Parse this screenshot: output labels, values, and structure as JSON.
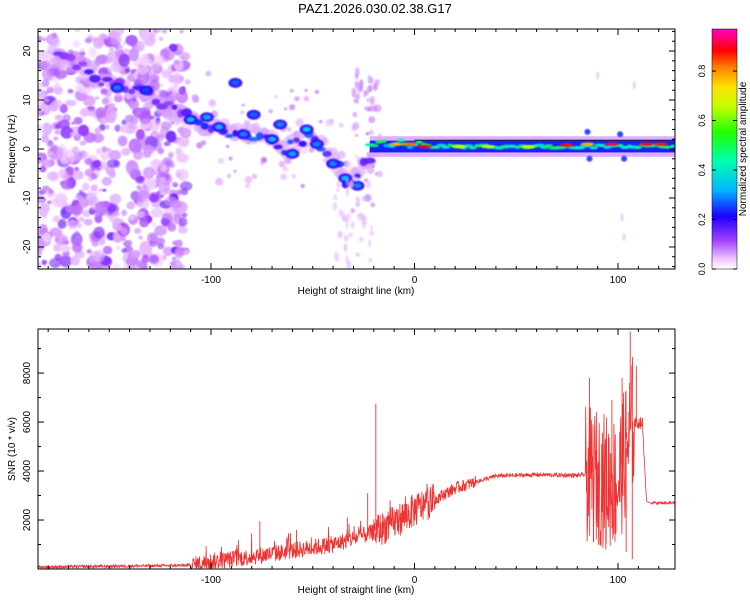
{
  "title": "PAZ1.2026.030.02.38.G17",
  "chart_data": [
    {
      "type": "heatmap",
      "name": "spectrogram",
      "xlabel": "Height of straight line (km)",
      "ylabel": "Frequency (Hz)",
      "xlim": [
        -185,
        128
      ],
      "ylim": [
        -24.5,
        24.5
      ],
      "xticks": [
        -100,
        0,
        100
      ],
      "yticks": [
        -20,
        -10,
        0,
        10,
        20
      ],
      "colorbar": {
        "label": "Normalized spectral amplitude",
        "range": [
          0,
          0.97
        ],
        "ticks": [
          0.0,
          0.2,
          0.4,
          0.6,
          0.8
        ],
        "colormap": "rainbow (white, violet, blue, cyan, green, yellow, orange, red, magenta)"
      },
      "ridge": {
        "description": "dominant frequency track",
        "points": [
          [
            -185,
            20
          ],
          [
            -165,
            17
          ],
          [
            -150,
            13
          ],
          [
            -135,
            12
          ],
          [
            -120,
            8
          ],
          [
            -110,
            6
          ],
          [
            -95,
            4
          ],
          [
            -85,
            3
          ],
          [
            -75,
            3
          ],
          [
            -65,
            0
          ],
          [
            -50,
            3
          ],
          [
            -40,
            -2
          ],
          [
            -33,
            -7
          ],
          [
            -25,
            -3
          ],
          [
            -18,
            0
          ],
          [
            -5,
            1
          ],
          [
            0,
            0.5
          ],
          [
            20,
            0
          ],
          [
            60,
            0
          ],
          [
            90,
            1
          ],
          [
            128,
            1
          ]
        ]
      },
      "regions": [
        {
          "x_range": [
            -185,
            -112
          ],
          "description": "scattered noise speckle across all frequencies",
          "amplitude": 0.1
        },
        {
          "x_range": [
            -112,
            -25
          ],
          "description": "descending blobs",
          "amplitude": 0.25
        },
        {
          "x_range": [
            -22,
            128
          ],
          "description": "stable carrier near 0 Hz",
          "amplitude": 0.45
        }
      ]
    },
    {
      "type": "line",
      "name": "snr",
      "xlabel": "Height of straight line (km)",
      "ylabel": "SNR (10 * v/v)",
      "xlim": [
        -185,
        128
      ],
      "ylim": [
        0,
        9800
      ],
      "xticks": [
        -100,
        0,
        100
      ],
      "yticks": [
        2000,
        4000,
        6000,
        8000
      ],
      "color": "#ee3333",
      "envelope_x": [
        -185,
        -140,
        -110,
        -100,
        -80,
        -60,
        -40,
        -30,
        -20,
        -10,
        0,
        20,
        40,
        60,
        80,
        84,
        100,
        107,
        112,
        114,
        116,
        128
      ],
      "envelope_y": [
        80,
        120,
        150,
        300,
        500,
        750,
        1000,
        1250,
        1500,
        1900,
        2400,
        3300,
        3800,
        3850,
        3820,
        3850,
        3500,
        6000,
        5950,
        2750,
        2700,
        2700
      ],
      "spikes": [
        [
          -76,
          1950
        ],
        [
          -58,
          1600
        ],
        [
          -33,
          2100
        ],
        [
          -23,
          3100
        ],
        [
          -19,
          6750
        ],
        [
          -12,
          2800
        ],
        [
          -4,
          2500
        ],
        [
          86,
          7800
        ],
        [
          88,
          1100
        ],
        [
          92,
          5100
        ],
        [
          94,
          800
        ],
        [
          97,
          6900
        ],
        [
          99,
          1500
        ],
        [
          102,
          7800
        ],
        [
          104,
          700
        ],
        [
          106,
          9700
        ],
        [
          107,
          400
        ],
        [
          109,
          8300
        ]
      ]
    }
  ]
}
